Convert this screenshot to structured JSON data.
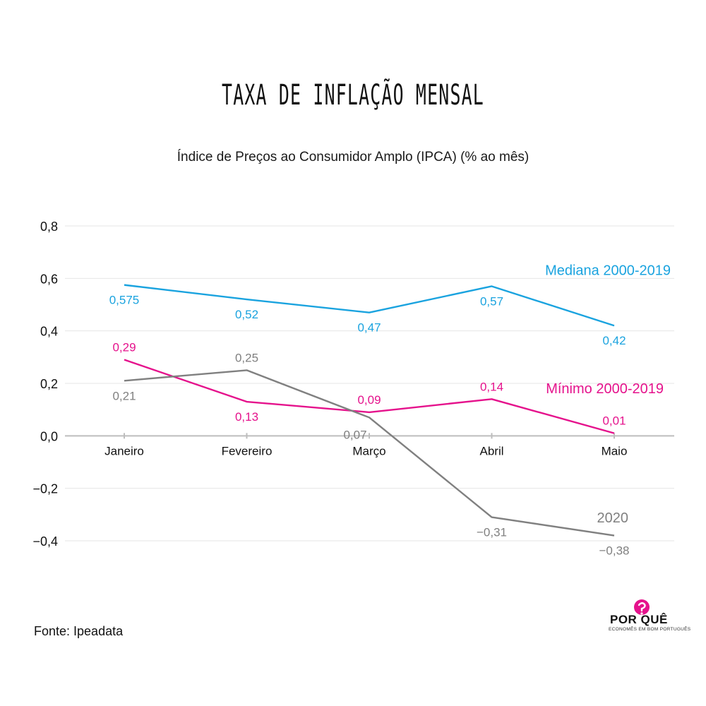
{
  "header": {
    "title": "TAXA DE INFLAÇÃO MENSAL",
    "subtitle": "Índice de Preços ao Consumidor Amplo (IPCA) (% ao mês)"
  },
  "footer": {
    "source": "Fonte: Ipeadata",
    "logo_word": "POR QUÊ",
    "logo_tagline": "ECONOMÊS EM BOM PORTUGUÊS"
  },
  "chart_data": {
    "type": "line",
    "categories": [
      "Janeiro",
      "Fevereiro",
      "Março",
      "Abril",
      "Maio"
    ],
    "ylim": [
      -0.4,
      0.8
    ],
    "yticks": [
      0.8,
      0.6,
      0.4,
      0.2,
      0.0,
      -0.2,
      -0.4
    ],
    "ytick_labels": [
      "0,8",
      "0,6",
      "0,4",
      "0,2",
      "0,0",
      "−0,2",
      "−0,4"
    ],
    "grid": true,
    "series": [
      {
        "name": "Mediana 2000-2019",
        "color": "#1aa3df",
        "values": [
          0.575,
          0.52,
          0.47,
          0.57,
          0.42
        ],
        "labels": [
          "0,575",
          "0,52",
          "0,47",
          "0,57",
          "0,42"
        ],
        "label_pos": [
          "below",
          "below",
          "below",
          "below",
          "below"
        ]
      },
      {
        "name": "Mínimo 2000-2019",
        "color": "#e5128c",
        "values": [
          0.29,
          0.13,
          0.09,
          0.14,
          0.01
        ],
        "labels": [
          "0,29",
          "0,13",
          "0,09",
          "0,14",
          "0,01"
        ],
        "label_pos": [
          "above",
          "below",
          "above",
          "above",
          "above"
        ]
      },
      {
        "name": "2020",
        "color": "#808080",
        "values": [
          0.21,
          0.25,
          0.07,
          -0.31,
          -0.38
        ],
        "labels": [
          "0,21",
          "0,25",
          "0,07",
          "−0,31",
          "−0,38"
        ],
        "label_pos": [
          "below",
          "above",
          "belowleft",
          "below",
          "below"
        ]
      }
    ]
  }
}
